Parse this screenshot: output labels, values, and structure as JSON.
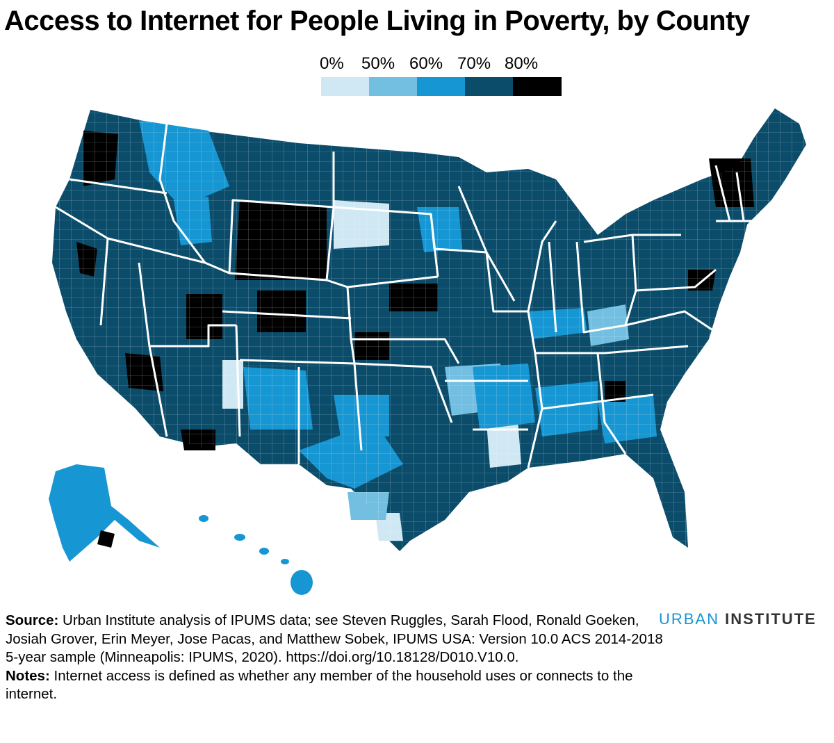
{
  "title": "Access to Internet for People Living in Poverty, by County",
  "legend": {
    "labels": [
      "0%",
      "50%",
      "60%",
      "70%",
      "80%"
    ],
    "colors": [
      "#cfe8f3",
      "#73bfe2",
      "#1696d2",
      "#0a4c6a",
      "#000000"
    ]
  },
  "source": {
    "label": "Source:",
    "text": "Urban Institute analysis of IPUMS data; see Steven Ruggles, Sarah Flood, Ronald Goeken, Josiah Grover, Erin Meyer, Jose Pacas, and Matthew Sobek, IPUMS USA: Version 10.0 ACS 2014-2018 5-year sample (Minneapolis: IPUMS, 2020). https://doi.org/10.18128/D010.V10.0."
  },
  "notes": {
    "label": "Notes:",
    "text": "Internet access is defined as whether any member of the household uses or connects to the internet."
  },
  "brand": {
    "word1": "URBAN",
    "word2": "INSTITUTE"
  },
  "map": {
    "default_fill": "#0a4c6a",
    "regions": [
      {
        "name": "Washington",
        "class": 3
      },
      {
        "name": "Oregon",
        "class": 3
      },
      {
        "name": "California",
        "class": 3
      },
      {
        "name": "Idaho",
        "class": 3
      },
      {
        "name": "Nevada",
        "class": 3
      },
      {
        "name": "Montana",
        "class": 2
      },
      {
        "name": "Wyoming",
        "class": 4
      },
      {
        "name": "Utah",
        "class": 3
      },
      {
        "name": "Colorado",
        "class": 3
      },
      {
        "name": "Arizona",
        "class": 3
      },
      {
        "name": "New Mexico",
        "class": 2
      },
      {
        "name": "Texas",
        "class": 2
      },
      {
        "name": "Oklahoma",
        "class": 3
      },
      {
        "name": "Kansas",
        "class": 3
      },
      {
        "name": "Nebraska",
        "class": 3
      },
      {
        "name": "South Dakota",
        "class": 2
      },
      {
        "name": "North Dakota",
        "class": 3
      },
      {
        "name": "Minnesota",
        "class": 3
      },
      {
        "name": "Iowa",
        "class": 3
      },
      {
        "name": "Missouri",
        "class": 2
      },
      {
        "name": "Arkansas",
        "class": 2
      },
      {
        "name": "Louisiana",
        "class": 2
      },
      {
        "name": "Mississippi",
        "class": 1
      },
      {
        "name": "Alabama",
        "class": 2
      },
      {
        "name": "Georgia",
        "class": 2
      },
      {
        "name": "Florida",
        "class": 3
      },
      {
        "name": "South Carolina",
        "class": 2
      },
      {
        "name": "North Carolina",
        "class": 3
      },
      {
        "name": "Tennessee",
        "class": 2
      },
      {
        "name": "Kentucky",
        "class": 2
      },
      {
        "name": "Virginia",
        "class": 3
      },
      {
        "name": "West Virginia",
        "class": 2
      },
      {
        "name": "Ohio",
        "class": 3
      },
      {
        "name": "Indiana",
        "class": 3
      },
      {
        "name": "Illinois",
        "class": 3
      },
      {
        "name": "Wisconsin",
        "class": 3
      },
      {
        "name": "Michigan",
        "class": 3
      },
      {
        "name": "Pennsylvania",
        "class": 3
      },
      {
        "name": "New York",
        "class": 3
      },
      {
        "name": "Vermont",
        "class": 3
      },
      {
        "name": "New Hampshire",
        "class": 3
      },
      {
        "name": "Maine",
        "class": 3
      },
      {
        "name": "Massachusetts",
        "class": 4
      },
      {
        "name": "New Jersey",
        "class": 4
      },
      {
        "name": "Maryland",
        "class": 4
      },
      {
        "name": "Alaska",
        "class": 2
      },
      {
        "name": "Hawaii",
        "class": 2
      }
    ]
  }
}
